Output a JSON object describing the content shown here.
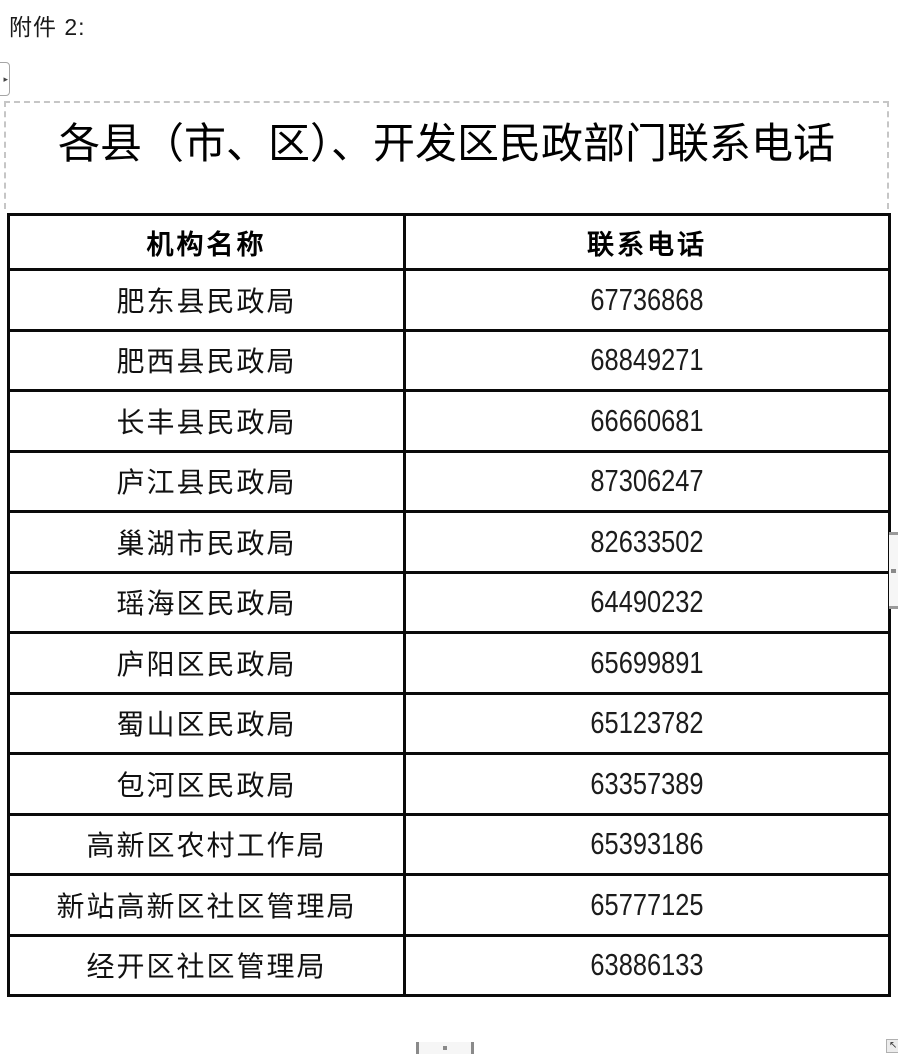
{
  "attachment_label": "附件 2:",
  "title": "各县（市、区）、开发区民政部门联系电话",
  "table": {
    "headers": {
      "name": "机构名称",
      "phone": "联系电话"
    },
    "rows": [
      {
        "name": "肥东县民政局",
        "phone": "67736868"
      },
      {
        "name": "肥西县民政局",
        "phone": "68849271"
      },
      {
        "name": "长丰县民政局",
        "phone": "66660681"
      },
      {
        "name": "庐江县民政局",
        "phone": "87306247"
      },
      {
        "name": "巢湖市民政局",
        "phone": "82633502"
      },
      {
        "name": "瑶海区民政局",
        "phone": "64490232"
      },
      {
        "name": "庐阳区民政局",
        "phone": "65699891"
      },
      {
        "name": "蜀山区民政局",
        "phone": "65123782"
      },
      {
        "name": "包河区民政局",
        "phone": "63357389"
      },
      {
        "name": "高新区农村工作局",
        "phone": "65393186"
      },
      {
        "name": "新站高新区社区管理局",
        "phone": "65777125"
      },
      {
        "name": "经开区社区管理局",
        "phone": "63886133"
      }
    ]
  },
  "icons": {
    "expand_arrow": "▸",
    "corner_arrow": "↖"
  },
  "colors": {
    "table_border": "#0a0a0a",
    "dashed_frame": "#c6c6c6",
    "text": "#000000",
    "handle_gray": "#9a9a9a"
  }
}
